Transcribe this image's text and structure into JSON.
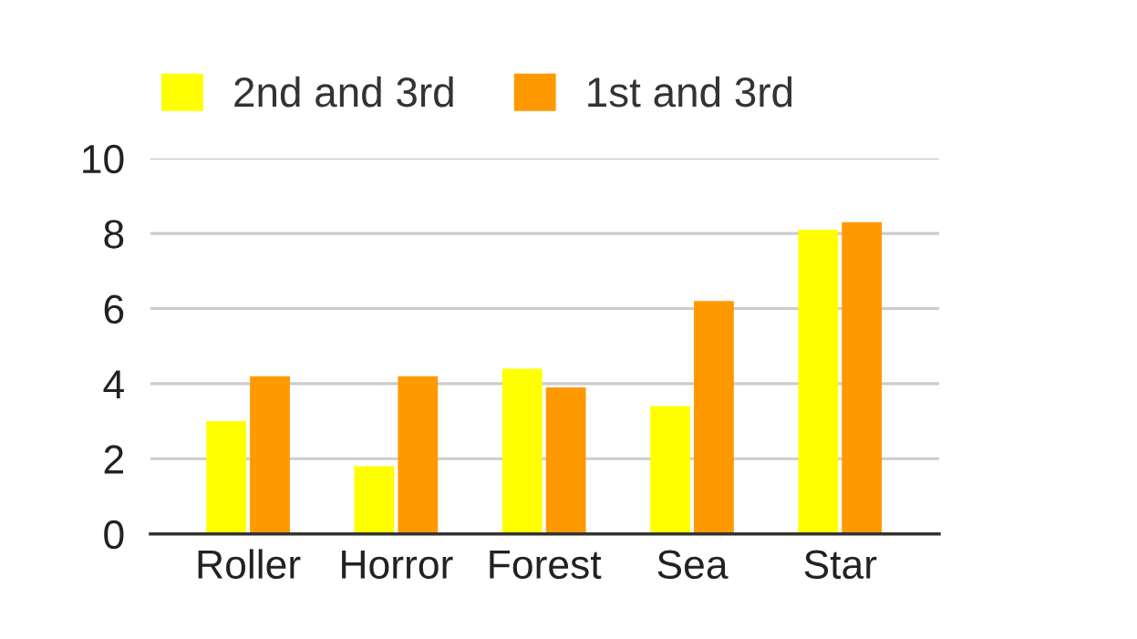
{
  "chart_data": {
    "type": "bar",
    "categories": [
      "Roller",
      "Horror",
      "Forest",
      "Sea",
      "Star"
    ],
    "series": [
      {
        "name": "2nd and 3rd",
        "color": "#ffff00",
        "values": [
          3.0,
          1.8,
          4.4,
          3.4,
          8.1
        ]
      },
      {
        "name": "1st and 3rd",
        "color": "#ff9900",
        "values": [
          4.2,
          4.2,
          3.9,
          6.2,
          8.3
        ]
      }
    ],
    "ylim": [
      0,
      10
    ],
    "yticks": [
      0,
      2,
      4,
      6,
      8,
      10
    ],
    "grid": "y",
    "legend": "top"
  }
}
